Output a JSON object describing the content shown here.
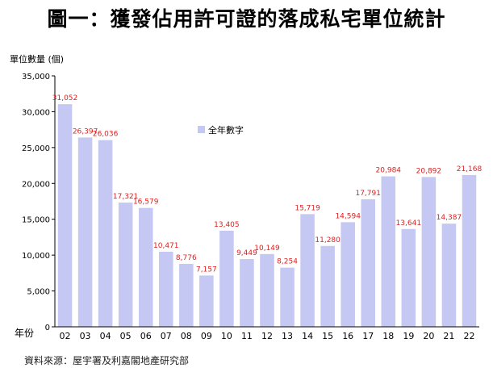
{
  "title": "圖一：獲發佔用許可證的落成私宅單位統計",
  "source": "資料來源：屋宇署及利嘉閣地產研究部",
  "colors": {
    "bar": "#C5C8F2",
    "label": "#E02020",
    "axis": "#000000"
  },
  "chart_data": {
    "type": "bar",
    "title": "圖一：獲發佔用許可證的落成私宅單位統計",
    "ylabel": "單位數量 (個)",
    "xlabel": "年份",
    "legend": {
      "label": "全年數字",
      "position": "top-center"
    },
    "categories": [
      "02",
      "03",
      "04",
      "05",
      "06",
      "07",
      "08",
      "09",
      "10",
      "11",
      "12",
      "13",
      "14",
      "15",
      "16",
      "17",
      "18",
      "19",
      "20",
      "21",
      "22"
    ],
    "values": [
      31052,
      26397,
      26036,
      17321,
      16579,
      10471,
      8776,
      7157,
      13405,
      9449,
      10149,
      8254,
      15719,
      11280,
      14594,
      17791,
      20984,
      13641,
      20892,
      14387,
      21168
    ],
    "data_labels": [
      "31,052",
      "26,397",
      "26,036",
      "17,321",
      "16,579",
      "10,471",
      "8,776",
      "7,157",
      "13,405",
      "9,449",
      "10,149",
      "8,254",
      "15,719",
      "11,280",
      "14,594",
      "17,791",
      "20,984",
      "13,641",
      "20,892",
      "14,387",
      "21,168"
    ],
    "yticks": [
      0,
      5000,
      10000,
      15000,
      20000,
      25000,
      30000,
      35000
    ],
    "ytick_labels": [
      "0",
      "5,000",
      "10,000",
      "15,000",
      "20,000",
      "25,000",
      "30,000",
      "35,000"
    ],
    "ylim": [
      0,
      35000
    ],
    "grid": false
  }
}
